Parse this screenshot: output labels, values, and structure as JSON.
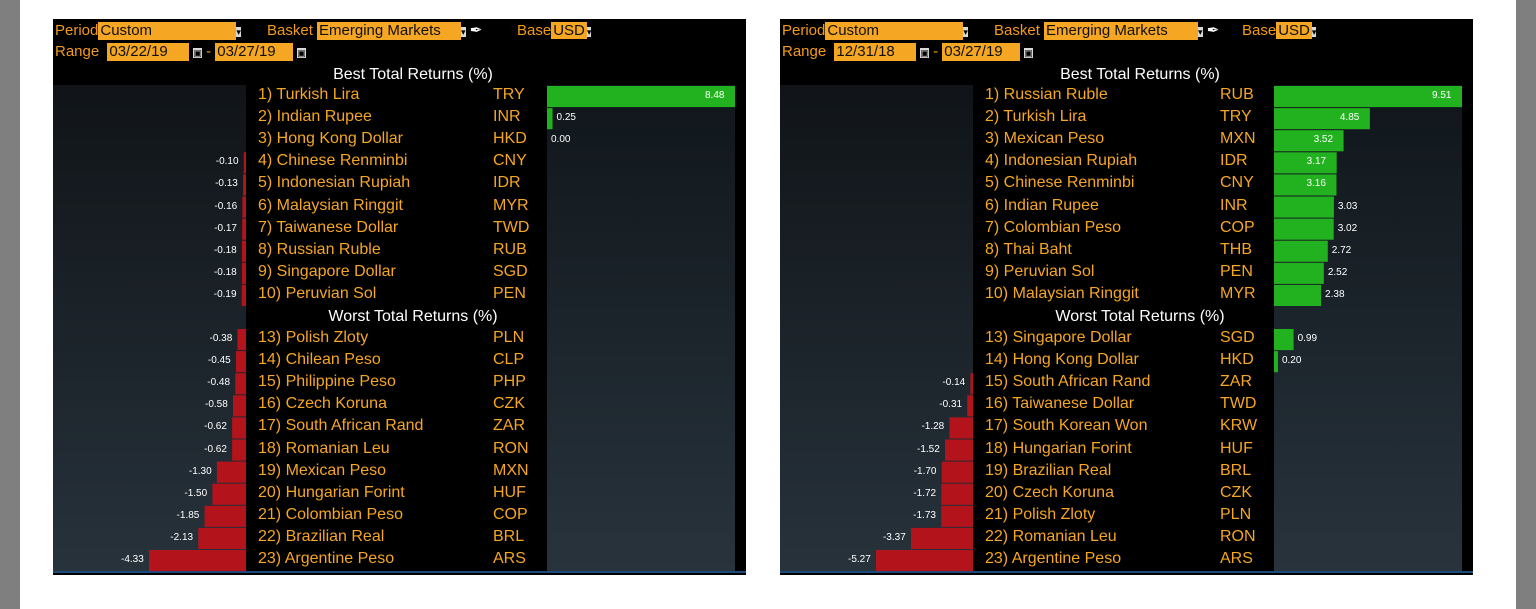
{
  "panels": [
    {
      "controls": {
        "period_label": "Period",
        "period_value": "Custom",
        "basket_label": "Basket",
        "basket_value": "Emerging Markets",
        "base_label": "Base",
        "base_value": "USD",
        "range_label": "Range",
        "range_start": "03/22/19",
        "range_dash": "-",
        "range_end": "03/27/19"
      },
      "chart_data": {
        "type": "bar",
        "orientation": "diverging-horizontal",
        "best_title": "Best Total Returns (%)",
        "worst_title": "Worst Total Returns (%)",
        "best": [
          {
            "rank": "1)",
            "name": "Turkish Lira",
            "code": "TRY",
            "value": 8.48,
            "label": "8.48"
          },
          {
            "rank": "2)",
            "name": "Indian Rupee",
            "code": "INR",
            "value": 0.25,
            "label": "0.25"
          },
          {
            "rank": "3)",
            "name": "Hong Kong Dollar",
            "code": "HKD",
            "value": 0.0,
            "label": "0.00"
          },
          {
            "rank": "4)",
            "name": "Chinese Renminbi",
            "code": "CNY",
            "value": -0.1,
            "label": "-0.10"
          },
          {
            "rank": "5)",
            "name": "Indonesian Rupiah",
            "code": "IDR",
            "value": -0.13,
            "label": "-0.13"
          },
          {
            "rank": "6)",
            "name": "Malaysian Ringgit",
            "code": "MYR",
            "value": -0.16,
            "label": "-0.16"
          },
          {
            "rank": "7)",
            "name": "Taiwanese Dollar",
            "code": "TWD",
            "value": -0.17,
            "label": "-0.17"
          },
          {
            "rank": "8)",
            "name": "Russian Ruble",
            "code": "RUB",
            "value": -0.18,
            "label": "-0.18"
          },
          {
            "rank": "9)",
            "name": "Singapore Dollar",
            "code": "SGD",
            "value": -0.18,
            "label": "-0.18"
          },
          {
            "rank": "10)",
            "name": "Peruvian Sol",
            "code": "PEN",
            "value": -0.19,
            "label": "-0.19"
          }
        ],
        "worst": [
          {
            "rank": "13)",
            "name": "Polish Zloty",
            "code": "PLN",
            "value": -0.38,
            "label": "-0.38"
          },
          {
            "rank": "14)",
            "name": "Chilean Peso",
            "code": "CLP",
            "value": -0.45,
            "label": "-0.45"
          },
          {
            "rank": "15)",
            "name": "Philippine Peso",
            "code": "PHP",
            "value": -0.48,
            "label": "-0.48"
          },
          {
            "rank": "16)",
            "name": "Czech Koruna",
            "code": "CZK",
            "value": -0.58,
            "label": "-0.58"
          },
          {
            "rank": "17)",
            "name": "South African Rand",
            "code": "ZAR",
            "value": -0.62,
            "label": "-0.62"
          },
          {
            "rank": "18)",
            "name": "Romanian Leu",
            "code": "RON",
            "value": -0.62,
            "label": "-0.62"
          },
          {
            "rank": "19)",
            "name": "Mexican Peso",
            "code": "MXN",
            "value": -1.3,
            "label": "-1.30"
          },
          {
            "rank": "20)",
            "name": "Hungarian Forint",
            "code": "HUF",
            "value": -1.5,
            "label": "-1.50"
          },
          {
            "rank": "21)",
            "name": "Colombian Peso",
            "code": "COP",
            "value": -1.85,
            "label": "-1.85"
          },
          {
            "rank": "22)",
            "name": "Brazilian Real",
            "code": "BRL",
            "value": -2.13,
            "label": "-2.13"
          },
          {
            "rank": "23)",
            "name": "Argentine Peso",
            "code": "ARS",
            "value": -4.33,
            "label": "-4.33"
          }
        ],
        "max_positive": 8.48,
        "max_negative": -4.33
      }
    },
    {
      "controls": {
        "period_label": "Period",
        "period_value": "Custom",
        "basket_label": "Basket",
        "basket_value": "Emerging Markets",
        "base_label": "Base",
        "base_value": "USD",
        "range_label": "Range",
        "range_start": "12/31/18",
        "range_dash": "-",
        "range_end": "03/27/19"
      },
      "chart_data": {
        "type": "bar",
        "orientation": "diverging-horizontal",
        "best_title": "Best Total Returns (%)",
        "worst_title": "Worst Total Returns (%)",
        "best": [
          {
            "rank": "1)",
            "name": "Russian Ruble",
            "code": "RUB",
            "value": 9.51,
            "label": "9.51"
          },
          {
            "rank": "2)",
            "name": "Turkish Lira",
            "code": "TRY",
            "value": 4.85,
            "label": "4.85"
          },
          {
            "rank": "3)",
            "name": "Mexican Peso",
            "code": "MXN",
            "value": 3.52,
            "label": "3.52"
          },
          {
            "rank": "4)",
            "name": "Indonesian Rupiah",
            "code": "IDR",
            "value": 3.17,
            "label": "3.17"
          },
          {
            "rank": "5)",
            "name": "Chinese Renminbi",
            "code": "CNY",
            "value": 3.16,
            "label": "3.16"
          },
          {
            "rank": "6)",
            "name": "Indian Rupee",
            "code": "INR",
            "value": 3.03,
            "label": "3.03"
          },
          {
            "rank": "7)",
            "name": "Colombian Peso",
            "code": "COP",
            "value": 3.02,
            "label": "3.02"
          },
          {
            "rank": "8)",
            "name": "Thai Baht",
            "code": "THB",
            "value": 2.72,
            "label": "2.72"
          },
          {
            "rank": "9)",
            "name": "Peruvian Sol",
            "code": "PEN",
            "value": 2.52,
            "label": "2.52"
          },
          {
            "rank": "10)",
            "name": "Malaysian Ringgit",
            "code": "MYR",
            "value": 2.38,
            "label": "2.38"
          }
        ],
        "worst": [
          {
            "rank": "13)",
            "name": "Singapore Dollar",
            "code": "SGD",
            "value": 0.99,
            "label": "0.99"
          },
          {
            "rank": "14)",
            "name": "Hong Kong Dollar",
            "code": "HKD",
            "value": 0.2,
            "label": "0.20"
          },
          {
            "rank": "15)",
            "name": "South African Rand",
            "code": "ZAR",
            "value": -0.14,
            "label": "-0.14"
          },
          {
            "rank": "16)",
            "name": "Taiwanese Dollar",
            "code": "TWD",
            "value": -0.31,
            "label": "-0.31"
          },
          {
            "rank": "17)",
            "name": "South Korean Won",
            "code": "KRW",
            "value": -1.28,
            "label": "-1.28"
          },
          {
            "rank": "18)",
            "name": "Hungarian Forint",
            "code": "HUF",
            "value": -1.52,
            "label": "-1.52"
          },
          {
            "rank": "19)",
            "name": "Brazilian Real",
            "code": "BRL",
            "value": -1.7,
            "label": "-1.70"
          },
          {
            "rank": "20)",
            "name": "Czech Koruna",
            "code": "CZK",
            "value": -1.72,
            "label": "-1.72"
          },
          {
            "rank": "21)",
            "name": "Polish Zloty",
            "code": "PLN",
            "value": -1.73,
            "label": "-1.73"
          },
          {
            "rank": "22)",
            "name": "Romanian Leu",
            "code": "RON",
            "value": -3.37,
            "label": "-3.37"
          },
          {
            "rank": "23)",
            "name": "Argentine Peso",
            "code": "ARS",
            "value": -5.27,
            "label": "-5.27"
          }
        ],
        "max_positive": 9.51,
        "max_negative": -5.27
      }
    }
  ],
  "colors": {
    "panel_bg": "#000000",
    "label_orange": "#f5a623",
    "positive_bar": "#22b21f",
    "negative_bar": "#b3141b",
    "value_text": "#ffffff"
  }
}
